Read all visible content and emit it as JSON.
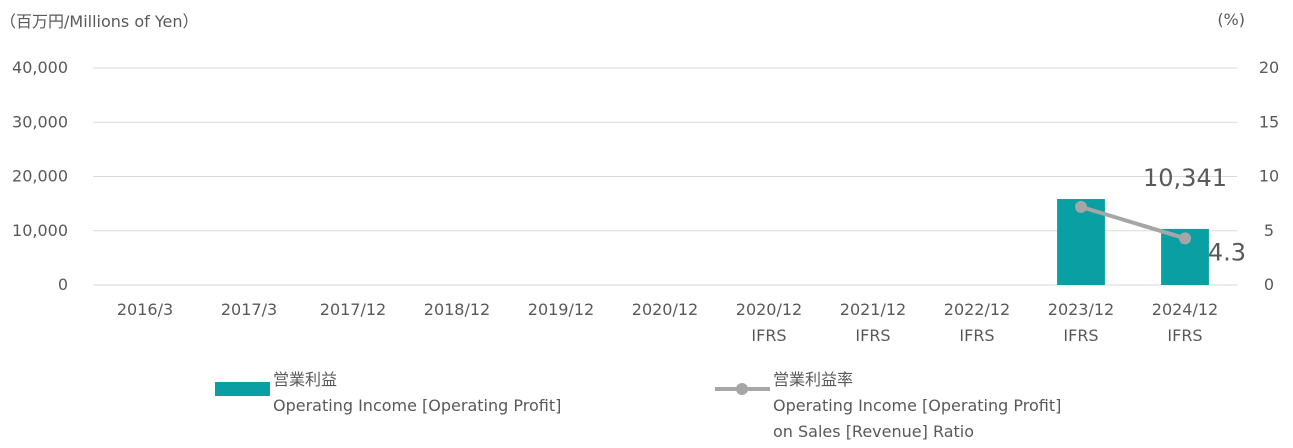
{
  "chart_data": {
    "type": "bar",
    "y_label": "（百万円/Millions of Yen）",
    "y2_label": "(%)",
    "categories": [
      "2016/3",
      "2017/3",
      "2017/12",
      "2018/12",
      "2019/12",
      "2020/12",
      "2020/12\nIFRS",
      "2021/12\nIFRS",
      "2022/12\nIFRS",
      "2023/12\nIFRS",
      "2024/12\nIFRS"
    ],
    "series": [
      {
        "name": "営業利益\nOperating Income [Operating Profit]",
        "type": "bar",
        "color": "#0aa0a3",
        "values": [
          null,
          null,
          null,
          null,
          null,
          null,
          null,
          null,
          null,
          15850,
          10341
        ],
        "value_labels": [
          null,
          null,
          null,
          null,
          null,
          null,
          null,
          null,
          null,
          null,
          "10,341"
        ]
      },
      {
        "name": "営業利益率\nOperating Income [Operating Profit]\non Sales [Revenue] Ratio",
        "type": "line",
        "axis": "y2",
        "color": "#a6a6a6",
        "values": [
          null,
          null,
          null,
          null,
          null,
          null,
          null,
          null,
          null,
          7.2,
          4.3
        ]
      }
    ],
    "ylim": [
      0,
      40000
    ],
    "yticks": [
      {
        "value": 0,
        "label": "0"
      },
      {
        "value": 10000,
        "label": "10,000"
      },
      {
        "value": 20000,
        "label": "20,000"
      },
      {
        "value": 30000,
        "label": "30,000"
      },
      {
        "value": 40000,
        "label": "40,000"
      }
    ],
    "y2lim": [
      0,
      20
    ],
    "y2ticks": [
      0,
      5,
      10,
      15,
      20
    ],
    "grid": true
  }
}
